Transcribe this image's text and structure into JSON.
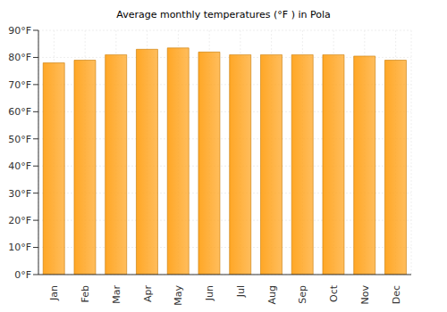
{
  "chart_data": {
    "type": "bar",
    "title": "Average monthly temperatures (°F ) in Pola",
    "categories": [
      "Jan",
      "Feb",
      "Mar",
      "Apr",
      "May",
      "Jun",
      "Jul",
      "Aug",
      "Sep",
      "Oct",
      "Nov",
      "Dec"
    ],
    "values": [
      78,
      79,
      81,
      83,
      83.5,
      82,
      81,
      81,
      81,
      81,
      80.5,
      79
    ],
    "color": "#ffa726",
    "ylim": [
      0,
      90
    ],
    "yticks": [
      {
        "value": 0,
        "label": "0°F"
      },
      {
        "value": 10,
        "label": "10°F"
      },
      {
        "value": 20,
        "label": "20°F"
      },
      {
        "value": 30,
        "label": "30°F"
      },
      {
        "value": 40,
        "label": "40°F"
      },
      {
        "value": 50,
        "label": "50°F"
      },
      {
        "value": 60,
        "label": "60°F"
      },
      {
        "value": 70,
        "label": "70°F"
      },
      {
        "value": 80,
        "label": "80°F"
      },
      {
        "value": 90,
        "label": "90°F"
      }
    ],
    "grid": true
  }
}
